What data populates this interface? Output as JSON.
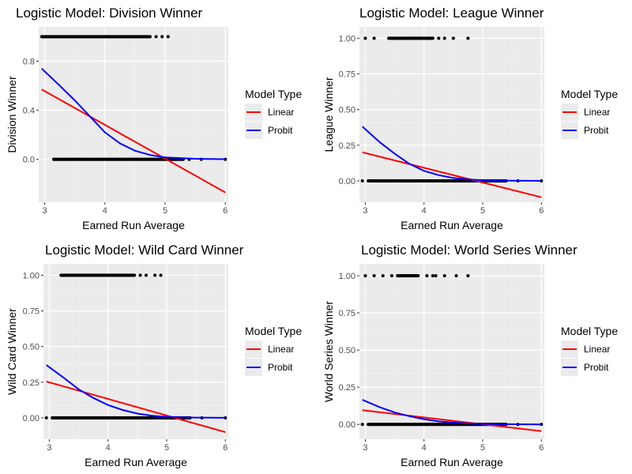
{
  "legend": {
    "title": "Model Type",
    "entries": [
      {
        "name": "Linear",
        "color": "#ff0000"
      },
      {
        "name": "Probit",
        "color": "#0000ff"
      }
    ]
  },
  "chart_data": [
    {
      "type": "scatter",
      "title": "Logistic Model: Division Winner",
      "xlabel": "Earned Run Average",
      "ylabel": "Division Winner",
      "xlim": [
        2.9,
        6.05
      ],
      "ylim": [
        -0.35,
        1.08
      ],
      "xticks": [
        3,
        4,
        5,
        6
      ],
      "yticks": [
        0.0,
        0.4,
        0.8
      ],
      "ytick_labels": [
        "0.0",
        "0.4",
        "0.8"
      ],
      "grid": true,
      "legend_placement": "right",
      "points_y1": {
        "y": 1,
        "x_range": [
          2.95,
          4.75
        ],
        "sparse_x": [
          4.85,
          4.95,
          5.05
        ]
      },
      "points_y0": {
        "y": 0,
        "x_range": [
          3.15,
          5.3
        ],
        "sparse_x": [
          5.4,
          5.6,
          6.0
        ]
      },
      "series": [
        {
          "name": "Linear",
          "x": [
            2.95,
            6.0
          ],
          "y": [
            0.57,
            -0.27
          ]
        },
        {
          "name": "Probit",
          "x": [
            2.95,
            3.25,
            3.5,
            3.75,
            4.0,
            4.25,
            4.5,
            4.75,
            5.0,
            5.5,
            6.0
          ],
          "y": [
            0.74,
            0.6,
            0.48,
            0.35,
            0.22,
            0.13,
            0.07,
            0.035,
            0.015,
            0.004,
            0.001
          ]
        }
      ]
    },
    {
      "type": "scatter",
      "title": "Logistic Model: League Winner",
      "xlabel": "Earned Run Average",
      "ylabel": "League Winner",
      "xlim": [
        2.9,
        6.05
      ],
      "ylim": [
        -0.15,
        1.08
      ],
      "xticks": [
        3,
        4,
        5,
        6
      ],
      "yticks": [
        0.0,
        0.25,
        0.5,
        0.75,
        1.0
      ],
      "ytick_labels": [
        "0.00",
        "0.25",
        "0.50",
        "0.75",
        "1.00"
      ],
      "grid": true,
      "legend_placement": "right",
      "points_y1": {
        "y": 1,
        "x_range": [
          3.4,
          4.15
        ],
        "sparse_x": [
          3.0,
          3.15,
          4.25,
          4.35,
          4.5,
          4.75
        ]
      },
      "points_y0": {
        "y": 0,
        "x_range": [
          3.05,
          5.4
        ],
        "sparse_x": [
          2.95,
          5.6,
          6.0
        ]
      },
      "series": [
        {
          "name": "Linear",
          "x": [
            2.95,
            6.0
          ],
          "y": [
            0.2,
            -0.115
          ]
        },
        {
          "name": "Probit",
          "x": [
            2.95,
            3.25,
            3.5,
            3.75,
            4.0,
            4.25,
            4.5,
            4.75,
            5.0,
            5.5,
            6.0
          ],
          "y": [
            0.38,
            0.27,
            0.19,
            0.12,
            0.07,
            0.04,
            0.02,
            0.01,
            0.004,
            0.001,
            0.0
          ]
        }
      ]
    },
    {
      "type": "scatter",
      "title": "Logistic Model: Wild Card Winner",
      "xlabel": "Earned Run Average",
      "ylabel": "Wild Card Winner",
      "xlim": [
        2.9,
        6.05
      ],
      "ylim": [
        -0.15,
        1.08
      ],
      "xticks": [
        3,
        4,
        5,
        6
      ],
      "yticks": [
        0.0,
        0.25,
        0.5,
        0.75,
        1.0
      ],
      "ytick_labels": [
        "0.00",
        "0.25",
        "0.50",
        "0.75",
        "1.00"
      ],
      "grid": true,
      "legend_placement": "right",
      "points_y1": {
        "y": 1,
        "x_range": [
          3.2,
          4.45
        ],
        "sparse_x": [
          4.55,
          4.65,
          4.8,
          4.9
        ]
      },
      "points_y0": {
        "y": 0,
        "x_range": [
          3.05,
          5.4
        ],
        "sparse_x": [
          2.95,
          5.6,
          6.0
        ]
      },
      "series": [
        {
          "name": "Linear",
          "x": [
            2.95,
            6.0
          ],
          "y": [
            0.255,
            -0.1
          ]
        },
        {
          "name": "Probit",
          "x": [
            2.95,
            3.25,
            3.5,
            3.75,
            4.0,
            4.25,
            4.5,
            4.75,
            5.0,
            5.5,
            6.0
          ],
          "y": [
            0.37,
            0.28,
            0.2,
            0.14,
            0.09,
            0.055,
            0.03,
            0.015,
            0.007,
            0.002,
            0.0
          ]
        }
      ]
    },
    {
      "type": "scatter",
      "title": "Logistic Model: World Series Winner",
      "xlabel": "Earned Run Average",
      "ylabel": "World Series Winner",
      "xlim": [
        2.9,
        6.05
      ],
      "ylim": [
        -0.1,
        1.08
      ],
      "xticks": [
        3,
        4,
        5,
        6
      ],
      "yticks": [
        0.0,
        0.25,
        0.5,
        0.75,
        1.0
      ],
      "ytick_labels": [
        "0.00",
        "0.25",
        "0.50",
        "0.75",
        "1.00"
      ],
      "grid": true,
      "legend_placement": "right",
      "points_y1": {
        "y": 1,
        "x_range": [
          3.55,
          3.9
        ],
        "sparse_x": [
          3.0,
          3.15,
          3.3,
          3.45,
          4.05,
          4.15,
          4.2,
          4.35,
          4.55,
          4.75
        ]
      },
      "points_y0": {
        "y": 0,
        "x_range": [
          3.05,
          5.4
        ],
        "sparse_x": [
          2.95,
          5.6,
          6.0
        ]
      },
      "series": [
        {
          "name": "Linear",
          "x": [
            2.95,
            6.0
          ],
          "y": [
            0.095,
            -0.045
          ]
        },
        {
          "name": "Probit",
          "x": [
            2.95,
            3.25,
            3.5,
            3.75,
            4.0,
            4.25,
            4.5,
            4.75,
            5.0,
            5.5,
            6.0
          ],
          "y": [
            0.165,
            0.115,
            0.08,
            0.055,
            0.035,
            0.02,
            0.012,
            0.006,
            0.003,
            0.001,
            0.0
          ]
        }
      ]
    }
  ]
}
